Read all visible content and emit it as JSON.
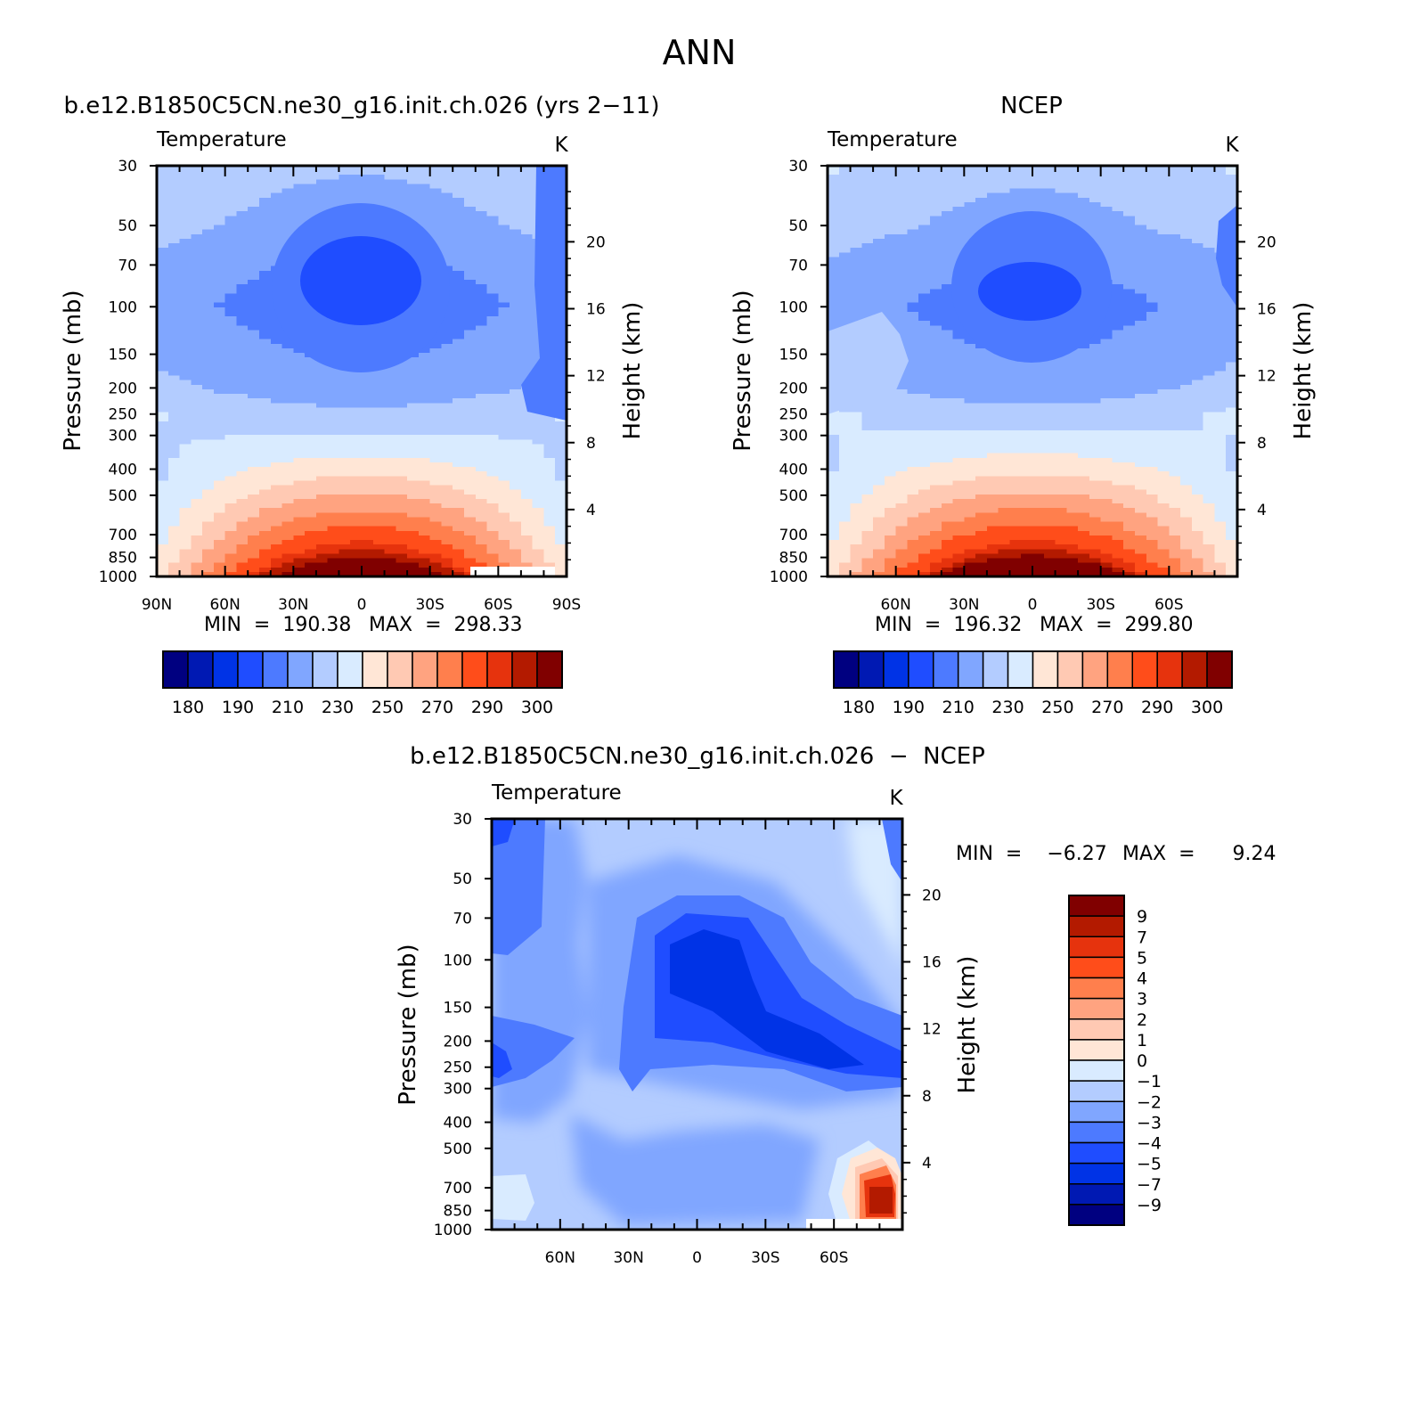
{
  "figure": {
    "title": "ANN"
  },
  "colors": {
    "abs_levels": [
      "#000080",
      "#0019b3",
      "#0033e6",
      "#1f4dff",
      "#4d7aff",
      "#80a6ff",
      "#b3ccff",
      "#d9ebff",
      "#ffe6d6",
      "#ffc9b3",
      "#ffa380",
      "#ff7f4d",
      "#ff4d1a",
      "#e6330d",
      "#b31a00",
      "#800000"
    ],
    "diff_levels": [
      "#000080",
      "#0019b3",
      "#0033e6",
      "#1f4dff",
      "#4d7aff",
      "#80a6ff",
      "#b3ccff",
      "#d9ebff",
      "#ffe6d6",
      "#ffc9b3",
      "#ffa380",
      "#ff7f4d",
      "#ff4d1a",
      "#e6330d",
      "#b31a00",
      "#800000"
    ]
  },
  "chart_data": [
    {
      "type": "heatmap",
      "id": "model",
      "title": "b.e12.B1850C5CN.ne30_g16.init.ch.026 (yrs 2−11)",
      "subtitle_left": "Temperature",
      "units": "K",
      "ylabel": "Pressure (mb)",
      "ylabel_right": "Height (km)",
      "x_ticks": [
        {
          "lat": 90,
          "label": "90N"
        },
        {
          "lat": 60,
          "label": "60N"
        },
        {
          "lat": 30,
          "label": "30N"
        },
        {
          "lat": 0,
          "label": "0"
        },
        {
          "lat": -30,
          "label": "30S"
        },
        {
          "lat": -60,
          "label": "60S"
        },
        {
          "lat": -90,
          "label": "90S"
        }
      ],
      "xlim": [
        90,
        -90
      ],
      "y_ticks": [
        30,
        50,
        70,
        100,
        150,
        200,
        250,
        300,
        400,
        500,
        700,
        850,
        1000
      ],
      "ylim": [
        30,
        1000
      ],
      "height_ticks": [
        4,
        8,
        12,
        16,
        20
      ],
      "min_label": "MIN  =  190.38",
      "max_label": "MAX  =  298.33",
      "min": 190.38,
      "max": 298.33,
      "levels": [
        180,
        185,
        190,
        200,
        210,
        220,
        230,
        240,
        250,
        260,
        270,
        280,
        290,
        295,
        300
      ],
      "colorbar_labels": [
        "180",
        "190",
        "210",
        "230",
        "250",
        "270",
        "290",
        "300"
      ],
      "profile_pressure": [
        30,
        50,
        70,
        100,
        150,
        200,
        250,
        300,
        400,
        500,
        700,
        850,
        1000
      ],
      "profile_temperature": [
        221,
        215,
        208,
        205,
        209,
        214,
        222,
        228,
        240,
        252,
        272,
        285,
        298
      ]
    },
    {
      "type": "heatmap",
      "id": "obs",
      "title": "NCEP",
      "subtitle_left": "Temperature",
      "units": "K",
      "ylabel": "Pressure (mb)",
      "ylabel_right": "Height (km)",
      "x_ticks": [
        {
          "lat": 60,
          "label": "60N"
        },
        {
          "lat": 30,
          "label": "30N"
        },
        {
          "lat": 0,
          "label": "0"
        },
        {
          "lat": -30,
          "label": "30S"
        },
        {
          "lat": -60,
          "label": "60S"
        }
      ],
      "xlim": [
        90,
        -90
      ],
      "y_ticks": [
        30,
        50,
        70,
        100,
        150,
        200,
        250,
        300,
        400,
        500,
        700,
        850,
        1000
      ],
      "ylim": [
        30,
        1000
      ],
      "height_ticks": [
        4,
        8,
        12,
        16,
        20
      ],
      "min_label": "MIN  =  196.32",
      "max_label": "MAX  =  299.80",
      "min": 196.32,
      "max": 299.8,
      "levels": [
        180,
        185,
        190,
        200,
        210,
        220,
        230,
        240,
        250,
        260,
        270,
        280,
        290,
        295,
        300
      ],
      "colorbar_labels": [
        "180",
        "190",
        "210",
        "230",
        "250",
        "270",
        "290",
        "300"
      ],
      "profile_pressure": [
        30,
        50,
        70,
        100,
        150,
        200,
        250,
        300,
        400,
        500,
        700,
        850,
        1000
      ],
      "profile_temperature": [
        222,
        217,
        210,
        206,
        210,
        215,
        223,
        229,
        241,
        253,
        273,
        286,
        299
      ]
    },
    {
      "type": "heatmap",
      "id": "diff",
      "title": "b.e12.B1850C5CN.ne30_g16.init.ch.026  −  NCEP",
      "subtitle_left": "Temperature",
      "units": "K",
      "ylabel": "Pressure (mb)",
      "ylabel_right": "Height (km)",
      "x_ticks": [
        {
          "lat": 60,
          "label": "60N"
        },
        {
          "lat": 30,
          "label": "30N"
        },
        {
          "lat": 0,
          "label": "0"
        },
        {
          "lat": -30,
          "label": "30S"
        },
        {
          "lat": -60,
          "label": "60S"
        }
      ],
      "xlim": [
        90,
        -90
      ],
      "y_ticks": [
        30,
        50,
        70,
        100,
        150,
        200,
        250,
        300,
        400,
        500,
        700,
        850,
        1000
      ],
      "ylim": [
        30,
        1000
      ],
      "height_ticks": [
        4,
        8,
        12,
        16,
        20
      ],
      "min_label": "MIN  =    −6.27",
      "max_label": "MAX  =      9.24",
      "min": -6.27,
      "max": 9.24,
      "levels": [
        -9,
        -7,
        -5,
        -4,
        -3,
        -2,
        -1,
        0,
        1,
        2,
        3,
        4,
        5,
        7,
        9
      ],
      "colorbar_labels": [
        "9",
        "7",
        "5",
        "4",
        "3",
        "2",
        "1",
        "0",
        "−1",
        "−2",
        "−3",
        "−4",
        "−5",
        "−7",
        "−9"
      ]
    }
  ]
}
